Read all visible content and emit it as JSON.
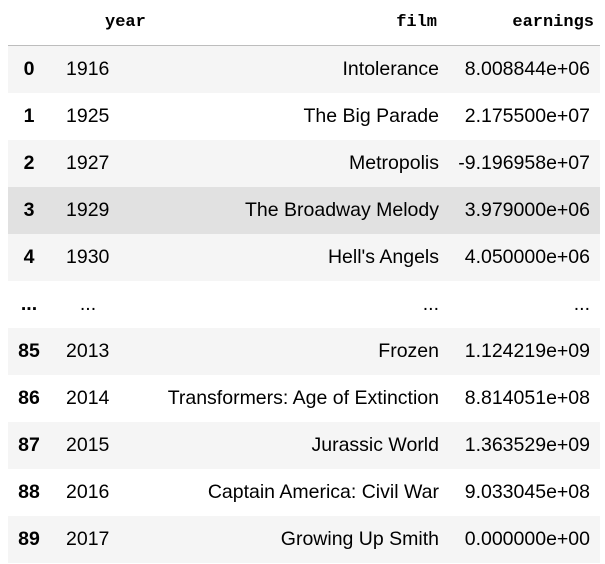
{
  "table": {
    "columns": [
      "",
      "year",
      "film",
      "earnings"
    ],
    "rows": [
      {
        "index": "0",
        "year": "1916",
        "film": "Intolerance",
        "earnings": "8.008844e+06"
      },
      {
        "index": "1",
        "year": "1925",
        "film": "The Big Parade",
        "earnings": "2.175500e+07"
      },
      {
        "index": "2",
        "year": "1927",
        "film": "Metropolis",
        "earnings": "-9.196958e+07"
      },
      {
        "index": "3",
        "year": "1929",
        "film": "The Broadway Melody",
        "earnings": "3.979000e+06"
      },
      {
        "index": "4",
        "year": "1930",
        "film": "Hell's Angels",
        "earnings": "4.050000e+06"
      },
      {
        "index": "...",
        "year": "...",
        "film": "...",
        "earnings": "..."
      },
      {
        "index": "85",
        "year": "2013",
        "film": "Frozen",
        "earnings": "1.124219e+09"
      },
      {
        "index": "86",
        "year": "2014",
        "film": "Transformers: Age of Extinction",
        "earnings": "8.814051e+08"
      },
      {
        "index": "87",
        "year": "2015",
        "film": "Jurassic World",
        "earnings": "1.363529e+09"
      },
      {
        "index": "88",
        "year": "2016",
        "film": "Captain America: Civil War",
        "earnings": "9.033045e+08"
      },
      {
        "index": "89",
        "year": "2017",
        "film": "Growing Up Smith",
        "earnings": "0.000000e+00"
      }
    ]
  }
}
